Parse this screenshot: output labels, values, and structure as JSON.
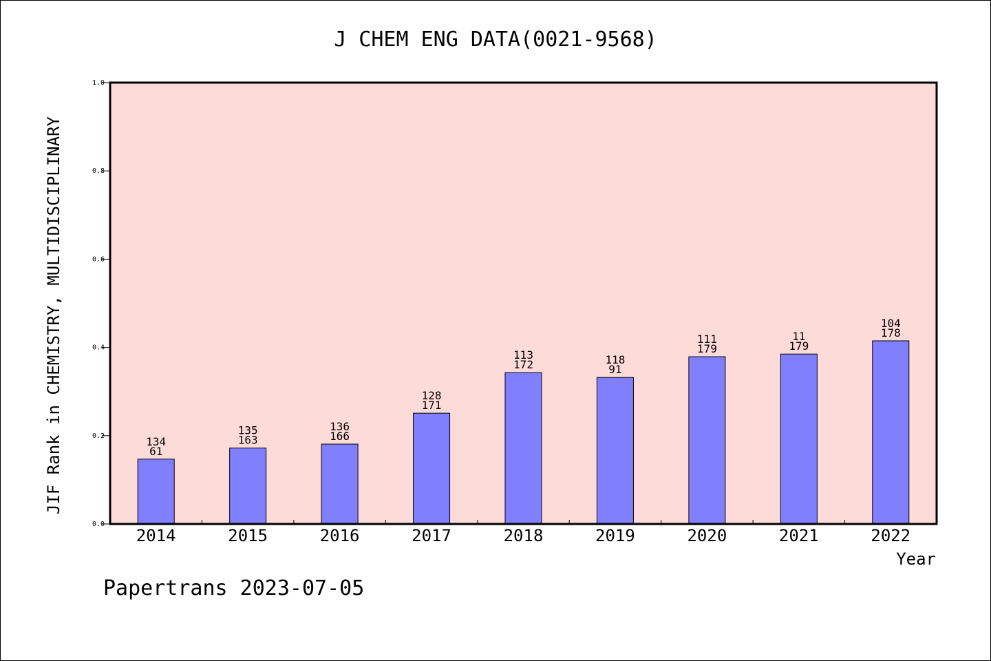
{
  "chart_data": {
    "type": "bar",
    "title": "J CHEM ENG DATA(0021-9568)",
    "xlabel": "Year",
    "ylabel": "JIF Rank in CHEMISTRY, MULTIDISCIPLINARY",
    "categories": [
      "2014",
      "2015",
      "2016",
      "2017",
      "2018",
      "2019",
      "2020",
      "2021",
      "2022"
    ],
    "values": [
      0.147,
      0.172,
      0.181,
      0.251,
      0.343,
      0.332,
      0.379,
      0.385,
      0.415
    ],
    "label_top": [
      "134",
      "135",
      "136",
      "128",
      "113",
      "118",
      "111",
      "11",
      "104"
    ],
    "label_bottom": [
      "61",
      "163",
      "166",
      "171",
      "172",
      "91",
      "179",
      "179",
      "178"
    ],
    "ylim": [
      0.0,
      1.0
    ],
    "yticks": [
      "0.0",
      "0.2",
      "0.4",
      "0.6",
      "0.8",
      "1.0"
    ],
    "grid": false,
    "colors": {
      "plot_background": "#fddbd8",
      "bar_fill": "#8080ff",
      "bar_stroke": "#000000"
    }
  },
  "footer": {
    "text": "Papertrans 2023-07-05"
  }
}
